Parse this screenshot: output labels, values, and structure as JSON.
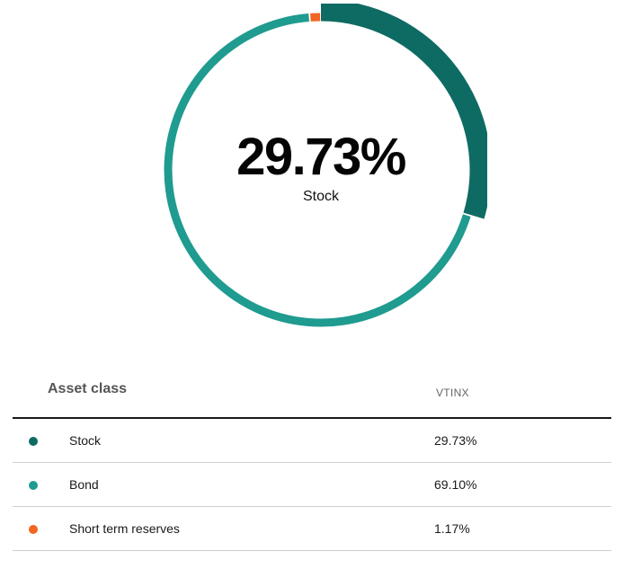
{
  "chart_data": {
    "type": "pie",
    "style": "donut",
    "center_value": "29.73%",
    "center_label": "Stock",
    "highlighted_slice": "Stock",
    "series": [
      {
        "name": "Stock",
        "value": 29.73,
        "display": "29.73%",
        "color": "#0e6b63"
      },
      {
        "name": "Bond",
        "value": 69.1,
        "display": "69.10%",
        "color": "#1f9b90"
      },
      {
        "name": "Short term reserves",
        "value": 1.17,
        "display": "1.17%",
        "color": "#f26522"
      }
    ]
  },
  "table": {
    "header_class": "Asset class",
    "header_fund": "VTINX"
  }
}
